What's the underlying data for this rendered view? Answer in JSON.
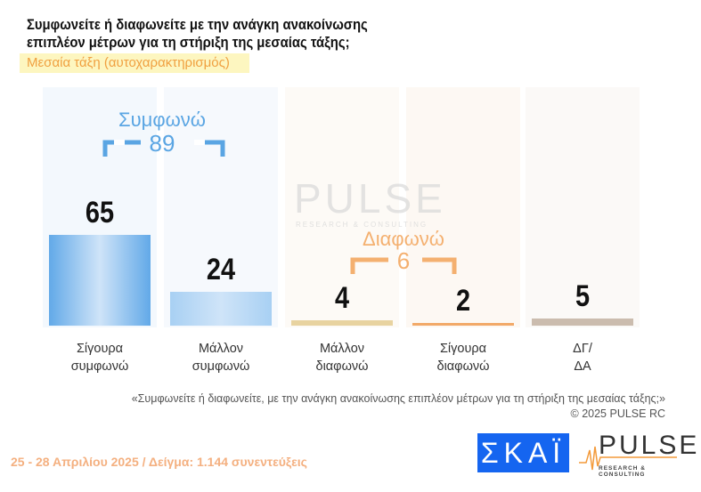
{
  "header": {
    "title_line1": "Συμφωνείτε ή διαφωνείτε με την ανάγκη ανακοίνωσης",
    "title_line2": "επιπλέον μέτρων για τη στήριξη της μεσαίας τάξης;",
    "subtitle": "Μεσαία τάξη (αυτοχαρακτηρισμός)"
  },
  "chart_data": {
    "type": "bar",
    "categories": [
      "Σίγουρα συμφωνώ",
      "Μάλλον συμφωνώ",
      "Μάλλον διαφωνώ",
      "Σίγουρα διαφωνώ",
      "ΔΓ/ ΔΑ"
    ],
    "category_lines": [
      [
        "Σίγουρα",
        "συμφωνώ"
      ],
      [
        "Μάλλον",
        "συμφωνώ"
      ],
      [
        "Μάλλον",
        "διαφωνώ"
      ],
      [
        "Σίγουρα",
        "διαφωνώ"
      ],
      [
        "ΔΓ/",
        "ΔΑ"
      ]
    ],
    "values": [
      65,
      24,
      4,
      2,
      5
    ],
    "colors": [
      "#62a9e8",
      "#a8d0f3",
      "#e8d3a0",
      "#f2a968",
      "#cbbcae"
    ],
    "groups": [
      {
        "label": "Συμφωνώ",
        "total": "89",
        "color": "#5aa5e3"
      },
      {
        "label": "Διαφωνώ",
        "total": "6",
        "color": "#f4b070"
      }
    ],
    "grid": false
  },
  "watermark": {
    "text": "PULSE",
    "sub": "RESEARCH & CONSULTING"
  },
  "note": {
    "question": "«Συμφωνείτε ή διαφωνείτε, με την ανάγκη ανακοίνωσης επιπλέον μέτρων για τη στήριξη της μεσαίας τάξης;»",
    "copyright": "©  2025  PULSE RC"
  },
  "footer": "25 - 28 Απριλίου 2025  /  Δείγμα:  1.144 συνεντεύξεις",
  "logos": {
    "skai": "ΣΚΑΪ",
    "pulse": "PULSE",
    "pulse_sub": "RESEARCH & CONSULTING"
  }
}
